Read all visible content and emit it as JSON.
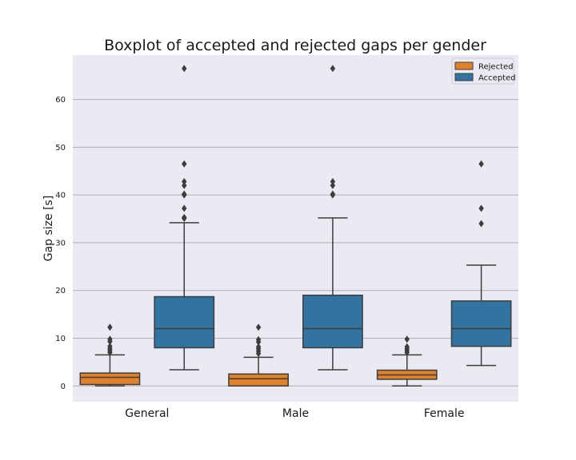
{
  "chart_data": {
    "type": "box",
    "title": "Boxplot of accepted and rejected gaps per gender",
    "xlabel": "",
    "ylabel": "Gap size [s]",
    "categories": [
      "General",
      "Male",
      "Female"
    ],
    "ylim": [
      -3.3,
      69.3
    ],
    "yticks": [
      0,
      10,
      20,
      30,
      40,
      50,
      60
    ],
    "grid": "horizontal",
    "legend_position": "top-right",
    "colors": {
      "Rejected": "#e1812c",
      "Accepted": "#3274a1",
      "background": "#eaeaf2",
      "grid": "#b0b0b0",
      "line": "#3d3d3d"
    },
    "series": [
      {
        "name": "Rejected",
        "boxes": [
          {
            "whisker_low": 0.0,
            "q1": 0.3,
            "median": 1.8,
            "q3": 2.7,
            "whisker_high": 6.5,
            "outliers": [
              7.0,
              7.4,
              7.8,
              8.3,
              9.3,
              9.8,
              12.3
            ]
          },
          {
            "whisker_low": 0.0,
            "q1": 0.0,
            "median": 1.5,
            "q3": 2.5,
            "whisker_high": 6.0,
            "outliers": [
              6.8,
              7.3,
              7.8,
              8.2,
              9.2,
              9.7,
              12.3
            ]
          },
          {
            "whisker_low": 0.0,
            "q1": 1.4,
            "median": 2.3,
            "q3": 3.3,
            "whisker_high": 6.5,
            "outliers": [
              7.0,
              7.4,
              7.8,
              8.2,
              9.8
            ]
          }
        ]
      },
      {
        "name": "Accepted",
        "boxes": [
          {
            "whisker_low": 3.4,
            "q1": 8.0,
            "median": 12.0,
            "q3": 18.7,
            "whisker_high": 34.2,
            "outliers": [
              35.1,
              35.3,
              37.2,
              40.0,
              40.2,
              42.0,
              42.8,
              46.5,
              66.5
            ]
          },
          {
            "whisker_low": 3.4,
            "q1": 8.0,
            "median": 12.0,
            "q3": 19.0,
            "whisker_high": 35.2,
            "outliers": [
              40.0,
              40.2,
              42.0,
              42.8,
              66.5
            ]
          },
          {
            "whisker_low": 4.3,
            "q1": 8.3,
            "median": 12.0,
            "q3": 17.8,
            "whisker_high": 25.3,
            "outliers": [
              34.0,
              37.2,
              46.5
            ]
          }
        ]
      }
    ]
  }
}
